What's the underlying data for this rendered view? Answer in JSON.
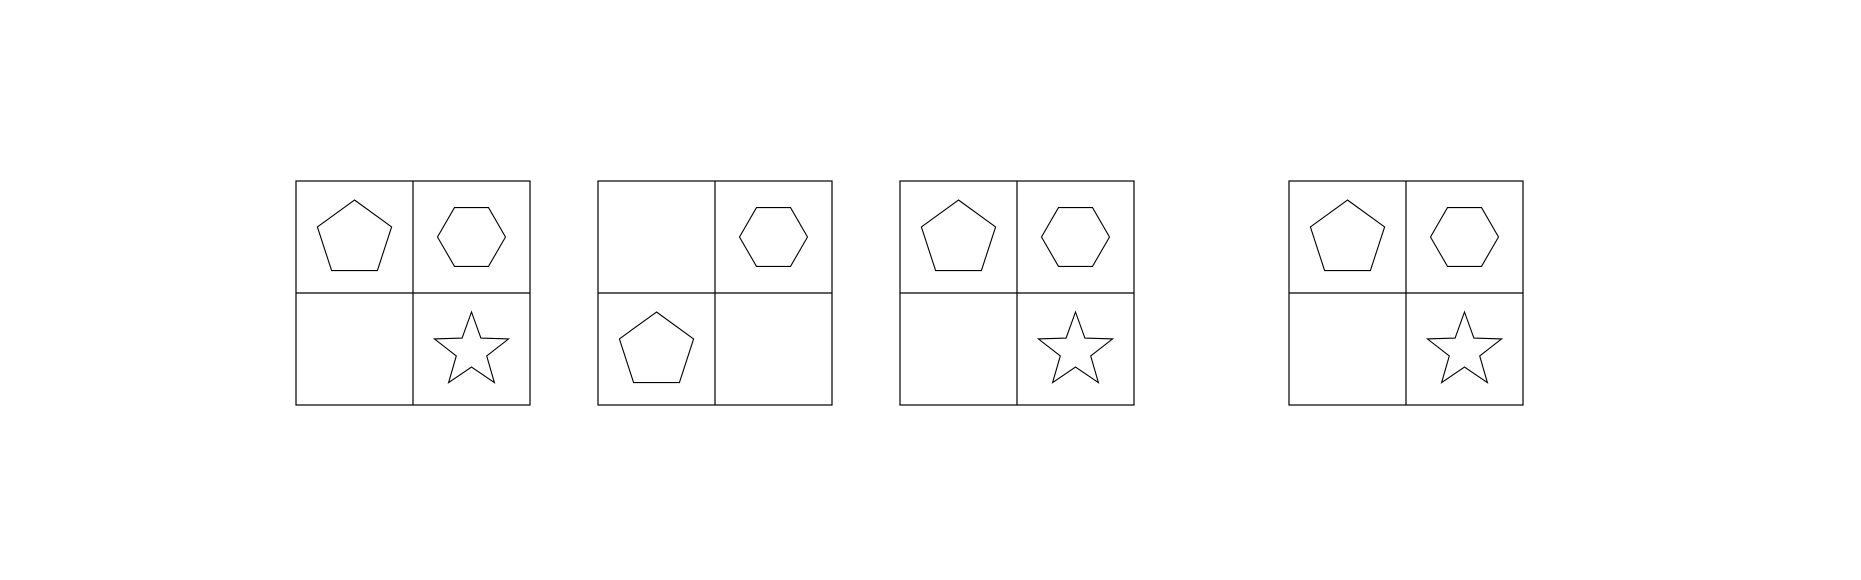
{
  "colors": {
    "background": "#ffffff",
    "stroke": "#000000"
  },
  "panels": [
    {
      "cells": [
        "pentagon",
        "hexagon",
        "empty",
        "star"
      ]
    },
    {
      "cells": [
        "empty",
        "hexagon",
        "pentagon",
        "empty"
      ]
    },
    {
      "cells": [
        "pentagon",
        "hexagon",
        "empty",
        "star"
      ]
    },
    {
      "cells": [
        "pentagon",
        "hexagon",
        "empty",
        "star"
      ]
    }
  ]
}
